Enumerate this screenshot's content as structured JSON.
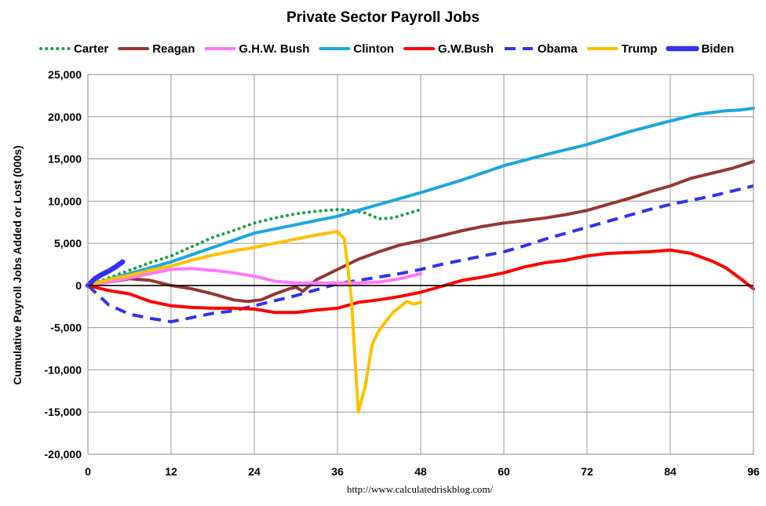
{
  "chart_data": {
    "type": "line",
    "title": "Private Sector Payroll Jobs",
    "xlabel": "",
    "ylabel": "Cumulative Payroll Jobs Added or  Lost (000s)",
    "source": "http://www.calculatedriskblog.com/",
    "xlim": [
      0,
      96
    ],
    "ylim": [
      -20000,
      25000
    ],
    "x_ticks": [
      0,
      12,
      24,
      36,
      48,
      60,
      72,
      84,
      96
    ],
    "y_ticks": [
      -20000,
      -15000,
      -10000,
      -5000,
      0,
      5000,
      10000,
      15000,
      20000,
      25000
    ],
    "x_tick_labels": [
      "0",
      "12",
      "24",
      "36",
      "48",
      "60",
      "72",
      "84",
      "96"
    ],
    "y_tick_labels": [
      "-20,000",
      "-15,000",
      "-10,000",
      "-5,000",
      "0",
      "5,000",
      "10,000",
      "15,000",
      "20,000",
      "25,000"
    ],
    "grid": true,
    "legend_position": "top",
    "series": [
      {
        "name": "Carter",
        "color": "#1a9e4a",
        "style": "dotted",
        "x": [
          0,
          3,
          6,
          9,
          12,
          15,
          18,
          21,
          24,
          27,
          30,
          33,
          36,
          38,
          40,
          42,
          44,
          46,
          48
        ],
        "y": [
          0,
          900,
          1800,
          2700,
          3500,
          4600,
          5700,
          6500,
          7400,
          8000,
          8500,
          8800,
          9000,
          8900,
          8600,
          7900,
          8000,
          8500,
          9000
        ]
      },
      {
        "name": "Reagan",
        "color": "#953735",
        "style": "solid",
        "x": [
          0,
          3,
          6,
          9,
          12,
          15,
          18,
          21,
          23,
          25,
          27,
          29,
          30,
          31,
          33,
          36,
          39,
          42,
          45,
          48,
          51,
          54,
          57,
          60,
          63,
          66,
          69,
          72,
          75,
          78,
          81,
          84,
          87,
          90,
          93,
          96
        ],
        "y": [
          0,
          400,
          800,
          600,
          0,
          -400,
          -1000,
          -1700,
          -1900,
          -1700,
          -1000,
          -400,
          -200,
          -700,
          700,
          1900,
          3100,
          4000,
          4800,
          5300,
          5900,
          6500,
          7000,
          7400,
          7700,
          8000,
          8400,
          8900,
          9600,
          10300,
          11100,
          11800,
          12700,
          13300,
          13900,
          14700
        ]
      },
      {
        "name": "G.H.W. Bush",
        "color": "#ff77ff",
        "style": "solid",
        "x": [
          0,
          3,
          6,
          9,
          12,
          15,
          18,
          21,
          24,
          27,
          30,
          33,
          36,
          39,
          42,
          45,
          48
        ],
        "y": [
          0,
          400,
          900,
          1400,
          1900,
          2000,
          1800,
          1500,
          1100,
          500,
          300,
          300,
          300,
          300,
          400,
          800,
          1400
        ]
      },
      {
        "name": "Clinton",
        "color": "#1fa6e0",
        "style": "solid",
        "x": [
          0,
          6,
          12,
          18,
          24,
          30,
          36,
          42,
          48,
          54,
          60,
          66,
          72,
          78,
          84,
          88,
          90,
          92,
          94,
          96
        ],
        "y": [
          0,
          1400,
          2800,
          4500,
          6200,
          7200,
          8200,
          9600,
          11000,
          12500,
          14200,
          15500,
          16700,
          18200,
          19500,
          20300,
          20500,
          20700,
          20800,
          21000
        ]
      },
      {
        "name": "G.W.Bush",
        "color": "#ff0000",
        "style": "solid",
        "x": [
          0,
          3,
          6,
          9,
          12,
          15,
          18,
          21,
          24,
          27,
          30,
          33,
          36,
          39,
          42,
          45,
          48,
          51,
          54,
          57,
          60,
          63,
          66,
          69,
          72,
          75,
          78,
          81,
          84,
          87,
          90,
          92,
          94,
          96
        ],
        "y": [
          0,
          -600,
          -1000,
          -1900,
          -2400,
          -2600,
          -2700,
          -2700,
          -2800,
          -3200,
          -3200,
          -2900,
          -2700,
          -2000,
          -1700,
          -1300,
          -800,
          -100,
          600,
          1000,
          1500,
          2200,
          2700,
          3000,
          3500,
          3800,
          3900,
          4000,
          4200,
          3800,
          2900,
          2100,
          900,
          -400
        ]
      },
      {
        "name": "Obama",
        "color": "#3333ee",
        "style": "dashed",
        "x": [
          0,
          3,
          6,
          9,
          12,
          15,
          18,
          21,
          24,
          27,
          30,
          33,
          36,
          39,
          42,
          45,
          48,
          51,
          54,
          57,
          60,
          63,
          66,
          69,
          72,
          75,
          78,
          81,
          84,
          87,
          90,
          93,
          96
        ],
        "y": [
          0,
          -2300,
          -3400,
          -3900,
          -4300,
          -3800,
          -3300,
          -3000,
          -2400,
          -1800,
          -1200,
          -500,
          200,
          600,
          1000,
          1400,
          1900,
          2500,
          3000,
          3500,
          4000,
          4700,
          5500,
          6200,
          6900,
          7600,
          8300,
          9000,
          9600,
          10100,
          10600,
          11200,
          11800
        ]
      },
      {
        "name": "Trump",
        "color": "#ffc000",
        "style": "solid",
        "x": [
          0,
          3,
          6,
          9,
          12,
          15,
          18,
          21,
          24,
          27,
          30,
          33,
          36,
          37,
          38,
          39,
          40,
          41,
          42,
          44,
          46,
          47,
          48
        ],
        "y": [
          0,
          700,
          1200,
          1800,
          2300,
          3000,
          3600,
          4100,
          4500,
          5000,
          5500,
          6000,
          6400,
          5500,
          -1500,
          -15000,
          -12000,
          -7000,
          -5300,
          -3200,
          -1900,
          -2200,
          -2000
        ]
      },
      {
        "name": "Biden",
        "color": "#3333ee",
        "style": "thick",
        "x": [
          0,
          1,
          2,
          3,
          4,
          5
        ],
        "y": [
          0,
          800,
          1300,
          1700,
          2200,
          2800
        ]
      }
    ]
  }
}
